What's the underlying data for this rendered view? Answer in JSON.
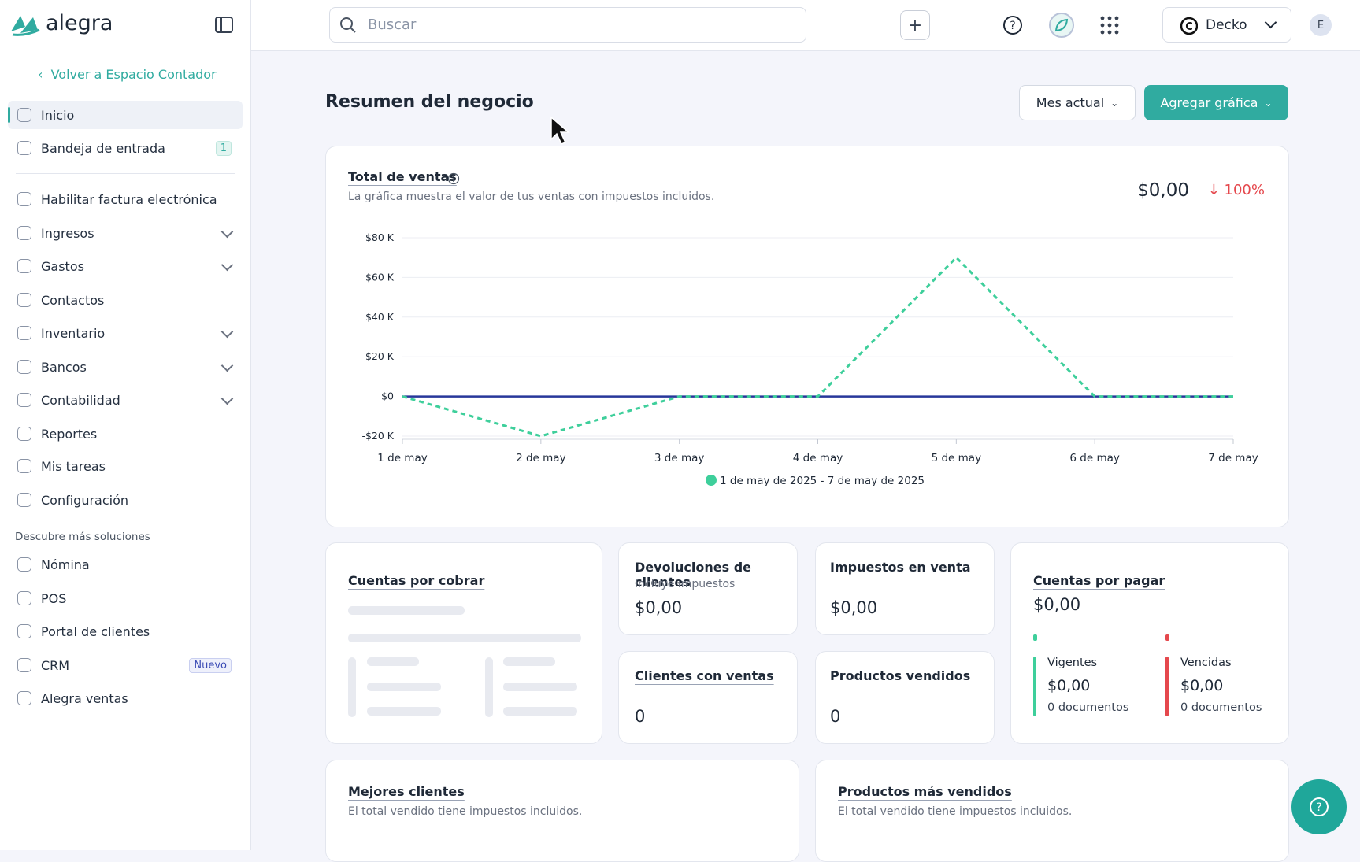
{
  "topbar": {
    "brand": "alegra",
    "search_placeholder": "Buscar",
    "company": "Decko",
    "avatar": "E"
  },
  "sidebar": {
    "back": "Volver a Espacio Contador",
    "items": [
      {
        "label": "Inicio"
      },
      {
        "label": "Bandeja de entrada",
        "badge": 1
      },
      {
        "label": "Habilitar factura electrónica"
      },
      {
        "label": "Ingresos",
        "expandable": true
      },
      {
        "label": "Gastos",
        "expandable": true
      },
      {
        "label": "Contactos"
      },
      {
        "label": "Inventario",
        "expandable": true
      },
      {
        "label": "Bancos",
        "expandable": true
      },
      {
        "label": "Contabilidad",
        "expandable": true
      },
      {
        "label": "Reportes"
      },
      {
        "label": "Mis tareas"
      },
      {
        "label": "Configuración"
      }
    ],
    "section": "Descubre más soluciones",
    "more_items": [
      {
        "label": "Nómina"
      },
      {
        "label": "POS"
      },
      {
        "label": "Portal de clientes"
      },
      {
        "label": "CRM",
        "badge": "Nuevo"
      },
      {
        "label": "Alegra ventas"
      }
    ]
  },
  "header": {
    "title": "Resumen del negocio",
    "period": "Mes actual",
    "add": "Agregar gráfica"
  },
  "sales_chart": {
    "type": "line",
    "title": "Total de ventas",
    "subtitle": "La gráfica muestra el valor de tus ventas con impuestos incluidos.",
    "total": "$0,00",
    "change": "100%",
    "categories": [
      "1 de may",
      "2 de may",
      "3 de may",
      "4 de may",
      "5 de may",
      "6 de may",
      "7 de may"
    ],
    "series": [
      {
        "name": "1 de may de 2025 - 7 de may de 2025",
        "color": "#3ecf9b",
        "values": [
          0,
          -20000,
          0,
          0,
          70000,
          0,
          0
        ]
      },
      {
        "color": "#27379a",
        "values": [
          0,
          0,
          0,
          0,
          0,
          0,
          0
        ]
      }
    ],
    "ylim": [
      -20000,
      80000
    ],
    "yticks": [
      {
        "value": -20000,
        "label": "-$20 K"
      },
      {
        "value": 0,
        "label": "$0"
      },
      {
        "value": 20000,
        "label": "$20 K"
      },
      {
        "value": 40000,
        "label": "$40 K"
      },
      {
        "value": 60000,
        "label": "$60 K"
      },
      {
        "value": 80000,
        "label": "$80 K"
      }
    ],
    "grid": true
  },
  "cards": {
    "receivables": {
      "title": "Cuentas por cobrar"
    },
    "returns": {
      "title": "Devoluciones de clientes",
      "note": "Incluye impuestos",
      "value": "$0,00"
    },
    "taxes": {
      "title": "Impuestos en venta",
      "value": "$0,00"
    },
    "clients": {
      "title": "Clientes con ventas",
      "value": 0
    },
    "products": {
      "title": "Productos vendidos",
      "value": 0
    },
    "payables": {
      "title": "Cuentas por pagar",
      "value": "$0,00",
      "current": {
        "label": "Vigentes",
        "value": "$0,00",
        "docs": "0 documentos"
      },
      "overdue": {
        "label": "Vencidas",
        "value": "$0,00",
        "docs": "0 documentos"
      }
    },
    "best_clients": {
      "title": "Mejores clientes",
      "note": "El total vendido tiene impuestos incluidos."
    },
    "top_products": {
      "title": "Productos más vendidos",
      "note": "El total vendido tiene impuestos incluidos."
    }
  }
}
